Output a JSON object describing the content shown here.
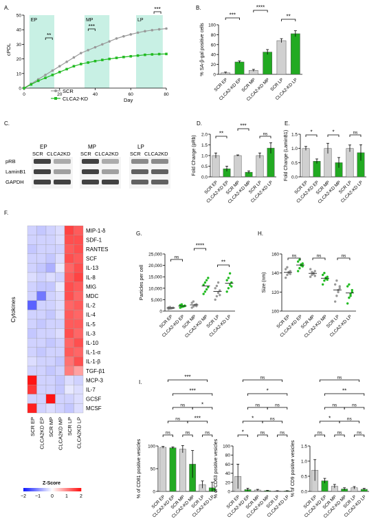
{
  "panels": {
    "A": "A.",
    "B": "B.",
    "C": "C.",
    "D": "D.",
    "E": "E.",
    "F": "F.",
    "G": "G.",
    "H": "H.",
    "I": "I."
  },
  "colors": {
    "scr": "#999999",
    "kd": "#22bb22",
    "bar_scr": "#d0d0d0",
    "bar_kd": "#22aa22",
    "shade": "#c8f0e4"
  },
  "chart_data": [
    {
      "id": "A",
      "type": "line",
      "xlabel": "Day",
      "ylabel": "cPDL",
      "xlim": [
        0,
        80
      ],
      "ylim": [
        0,
        50
      ],
      "xticks": [
        "0",
        "20",
        "40",
        "60",
        "80"
      ],
      "yticks": [
        "0",
        "10",
        "20",
        "30",
        "40",
        "50"
      ],
      "phases": [
        {
          "label": "EP",
          "range": [
            3,
            17
          ]
        },
        {
          "label": "MP",
          "range": [
            34,
            48
          ]
        },
        {
          "label": "LP",
          "range": [
            63,
            78
          ]
        }
      ],
      "annotations": [
        "**",
        "***",
        "***"
      ],
      "series": [
        {
          "name": "SCR",
          "x": [
            0,
            4,
            8,
            12,
            16,
            20,
            24,
            28,
            32,
            36,
            40,
            44,
            48,
            52,
            56,
            60,
            64,
            68,
            72,
            76,
            80
          ],
          "y": [
            0,
            3,
            6,
            9,
            12,
            15,
            18,
            21,
            24,
            26,
            28,
            30,
            32,
            34,
            35.5,
            36.8,
            38,
            39,
            39.7,
            40.3,
            40.8
          ]
        },
        {
          "name": "CLCA2-KD",
          "x": [
            0,
            4,
            8,
            12,
            16,
            20,
            24,
            28,
            32,
            36,
            40,
            44,
            48,
            52,
            56,
            60,
            64,
            68,
            72,
            76,
            80
          ],
          "y": [
            0,
            2.5,
            5,
            7,
            9,
            11,
            13,
            15,
            16.5,
            17.5,
            18.5,
            19.3,
            20,
            20.7,
            21.3,
            21.8,
            22.3,
            22.8,
            23.1,
            23.3,
            23.4
          ]
        }
      ]
    },
    {
      "id": "B",
      "type": "bar",
      "ylabel": "% SA-β-gal positive cells",
      "ylim": [
        0,
        100
      ],
      "yticks": [
        "0",
        "20",
        "40",
        "60",
        "80",
        "100"
      ],
      "categories": [
        "SCR EP",
        "CLCA2-KD EP",
        "SCR MP",
        "CLCA2-KD MP",
        "SCR LP",
        "CLCA2-KD LP"
      ],
      "values": [
        3,
        25,
        8,
        45,
        68,
        82
      ],
      "errors": [
        1.5,
        2,
        2,
        5,
        4,
        6
      ],
      "significance": [
        "***",
        "****",
        "**"
      ]
    },
    {
      "id": "D",
      "type": "bar",
      "ylabel": "Fold Change (pRb)",
      "ylim": [
        0,
        2.0
      ],
      "yticks": [
        "0.0",
        "0.5",
        "1.0",
        "1.5",
        "2.0"
      ],
      "categories": [
        "SCR EP",
        "CLCA2-KD EP",
        "SCR MP",
        "CLCA2-KD MP",
        "SCR LP",
        "CLCA2-KD LP"
      ],
      "values": [
        1.0,
        0.38,
        1.0,
        0.22,
        1.0,
        1.35
      ],
      "errors": [
        0.12,
        0.12,
        0.03,
        0.06,
        0.12,
        0.25
      ],
      "significance": [
        "**",
        "***",
        "ns"
      ]
    },
    {
      "id": "E",
      "type": "bar",
      "ylabel": "Fold Change (LaminB1)",
      "ylim": [
        0,
        1.5
      ],
      "yticks": [
        "0.0",
        "0.5",
        "1.0",
        "1.5"
      ],
      "categories": [
        "SCR EP",
        "CLCA2-KD EP",
        "SCR MP",
        "CLCA2-KD MP",
        "SCR LP",
        "CLCA2-KD LP"
      ],
      "values": [
        1.0,
        0.55,
        1.0,
        0.5,
        1.0,
        0.85
      ],
      "errors": [
        0.07,
        0.08,
        0.18,
        0.18,
        0.12,
        0.28
      ],
      "significance": [
        "*",
        "*",
        "ns"
      ]
    },
    {
      "id": "F",
      "type": "heatmap",
      "ylabel": "Cytokines",
      "legend_title": "Z-Score",
      "legend_ticks": [
        "−2",
        "−1",
        "0",
        "1",
        "2"
      ],
      "columns": [
        "SCR EP",
        "CLCA2KD EP",
        "SCR MP",
        "CLCA2KD MP",
        "SCR LP",
        "CLCA2KD LP"
      ],
      "rows": [
        "MIP-1-δ",
        "SDF-1",
        "RANTES",
        "SCF",
        "IL-13",
        "IL-8",
        "MIG",
        "MDC",
        "IL-2",
        "IL-4",
        "IL-5",
        "IL-3",
        "IL-10",
        "IL-1-α",
        "IL-1-β",
        "TGF-β1",
        "MCP-3",
        "IL-7",
        "GCSF",
        "MCSF"
      ],
      "values": [
        [
          -0.4,
          -0.5,
          -0.4,
          -0.3,
          1.6,
          1.4
        ],
        [
          -0.4,
          -0.4,
          -0.4,
          -0.3,
          1.5,
          1.5
        ],
        [
          -0.5,
          -0.4,
          -0.4,
          -0.4,
          1.4,
          1.5
        ],
        [
          -0.4,
          -0.4,
          -0.5,
          -0.3,
          1.5,
          1.4
        ],
        [
          -0.4,
          -0.5,
          -0.7,
          -0.2,
          1.3,
          1.5
        ],
        [
          -0.3,
          -0.4,
          -0.3,
          -0.4,
          1.4,
          1.6
        ],
        [
          -0.4,
          -0.5,
          -0.5,
          -0.2,
          1.5,
          1.4
        ],
        [
          -0.4,
          -1.2,
          -0.4,
          -0.3,
          1.5,
          1.3
        ],
        [
          -1.4,
          -0.4,
          -0.4,
          -0.3,
          1.3,
          1.4
        ],
        [
          -0.4,
          -0.4,
          -0.5,
          -0.3,
          1.4,
          1.3
        ],
        [
          -0.4,
          -0.5,
          -0.4,
          -0.4,
          1.4,
          1.4
        ],
        [
          -0.5,
          -0.4,
          -0.4,
          -0.3,
          1.5,
          1.3
        ],
        [
          -0.4,
          -0.4,
          -0.5,
          -0.4,
          1.3,
          1.5
        ],
        [
          -0.4,
          -0.5,
          -0.4,
          -0.4,
          1.4,
          1.3
        ],
        [
          -0.3,
          -0.4,
          -0.4,
          -0.5,
          1.2,
          1.5
        ],
        [
          -0.4,
          -0.4,
          -0.5,
          -0.4,
          1.1,
          0.8
        ],
        [
          2.0,
          -0.4,
          -0.4,
          -0.5,
          -0.3,
          -0.4
        ],
        [
          1.7,
          -0.4,
          -0.4,
          -0.5,
          -0.2,
          -0.3
        ],
        [
          -0.4,
          -0.4,
          2.0,
          -0.4,
          -0.4,
          -0.3
        ],
        [
          1.9,
          -0.4,
          -0.3,
          -0.4,
          -0.5,
          -0.3
        ]
      ]
    },
    {
      "id": "G",
      "type": "scatter",
      "ylabel": "Particles per cell",
      "ylim": [
        0,
        25000
      ],
      "yticks": [
        "0",
        "5,000",
        "10,000",
        "15,000",
        "20,000",
        "25,000"
      ],
      "categories": [
        "SCR EP",
        "CLCA2-KD EP",
        "SCR MP",
        "CLCA2-KD MP",
        "SCR LP",
        "CLCA2-KD LP"
      ],
      "points": [
        [
          900,
          1100,
          1300,
          1500,
          1600,
          1800,
          1200,
          1400
        ],
        [
          1500,
          1800,
          2100,
          2400,
          2600,
          2900,
          2000,
          2200
        ],
        [
          1500,
          2000,
          2500,
          3000,
          3600,
          4200,
          2700,
          2200
        ],
        [
          7500,
          8500,
          9500,
          10500,
          11500,
          12500,
          13500,
          14500
        ],
        [
          5000,
          6500,
          8000,
          9000,
          10000,
          11000,
          12500,
          7000
        ],
        [
          8500,
          10000,
          11500,
          12500,
          13500,
          14500,
          16500,
          10800
        ]
      ],
      "significance": [
        "ns",
        "****",
        "**"
      ]
    },
    {
      "id": "H",
      "type": "scatter",
      "ylabel": "Size (nm)",
      "ylim": [
        100,
        160
      ],
      "yticks": [
        "100",
        "120",
        "140",
        "160"
      ],
      "categories": [
        "SCR EP",
        "CLCA2-KD EP",
        "SCR MP",
        "CLCA2-KD MP",
        "SCR LP",
        "CLCA2-KD LP"
      ],
      "points": [
        [
          135,
          138,
          140,
          142,
          144,
          146,
          141,
          139
        ],
        [
          142,
          145,
          148,
          150,
          152,
          154,
          149,
          147
        ],
        [
          136,
          138,
          140,
          142,
          144,
          141,
          139,
          137
        ],
        [
          128,
          132,
          134,
          136,
          138,
          140,
          135,
          133
        ],
        [
          110,
          116,
          120,
          124,
          128,
          132,
          122,
          126
        ],
        [
          108,
          114,
          118,
          122,
          126,
          128,
          116,
          120
        ]
      ],
      "significance": [
        "ns",
        "ns",
        "ns"
      ]
    },
    {
      "id": "I-1",
      "type": "bar",
      "ylabel": "% of CD81 positive vesicles",
      "ylim": [
        0,
        100
      ],
      "yticks": [
        "0",
        "50",
        "100"
      ],
      "categories": [
        "SCR EP",
        "CLCA2-KD EP",
        "SCR MP",
        "CLCA2-KD MP",
        "SCR LP",
        "CLCA2-KD LP"
      ],
      "values": [
        97,
        96,
        93,
        60,
        15,
        8
      ],
      "errors": [
        2,
        2,
        8,
        30,
        8,
        12
      ],
      "significance": [
        "ns",
        "ns",
        "ns",
        "ns",
        "***",
        "ns",
        "*",
        "***",
        "***"
      ]
    },
    {
      "id": "I-2",
      "type": "bar",
      "ylabel": "% of CD63 positive vesicles",
      "ylim": [
        0,
        100
      ],
      "yticks": [
        "0",
        "20",
        "40",
        "60",
        "80",
        "100"
      ],
      "categories": [
        "SCR EP",
        "CLCA2-KD EP",
        "SCR MP",
        "CLCA2-KD MP",
        "SCR LP",
        "CLCA2-KD LP"
      ],
      "values": [
        33,
        4,
        3,
        1.5,
        1,
        1
      ],
      "errors": [
        27,
        3,
        1.5,
        0.8,
        0.6,
        0.6
      ],
      "significance": [
        "*",
        "ns",
        "ns",
        "*",
        "ns",
        "ns",
        "ns",
        "*",
        "ns"
      ]
    },
    {
      "id": "I-3",
      "type": "bar",
      "ylabel": "% of CD9 positive vesicles",
      "ylim": [
        0,
        1.5
      ],
      "yticks": [
        "0.0",
        "0.5",
        "1.0",
        "1.5"
      ],
      "categories": [
        "SCR EP",
        "CLCA2-KD EP",
        "SCR MP",
        "CLCA2-KD MP",
        "SCR LP",
        "CLCA2-KD LP"
      ],
      "values": [
        0.7,
        0.35,
        0.17,
        0.08,
        0.12,
        0.07
      ],
      "errors": [
        0.35,
        0.08,
        0.06,
        0.04,
        0.04,
        0.03
      ],
      "significance": [
        "ns",
        "ns",
        "ns",
        "*",
        "ns",
        "ns",
        "ns",
        "**",
        "ns"
      ]
    }
  ],
  "blots": {
    "groups": [
      {
        "title": "EP",
        "lanes": [
          "SCR",
          "CLCA2KD"
        ]
      },
      {
        "title": "MP",
        "lanes": [
          "SCR",
          "CLCA2KD"
        ]
      },
      {
        "title": "LP",
        "lanes": [
          "SCR",
          "CLCA2KD"
        ]
      }
    ],
    "rows": [
      "pRB",
      "LaminB1",
      "GAPDH"
    ]
  }
}
